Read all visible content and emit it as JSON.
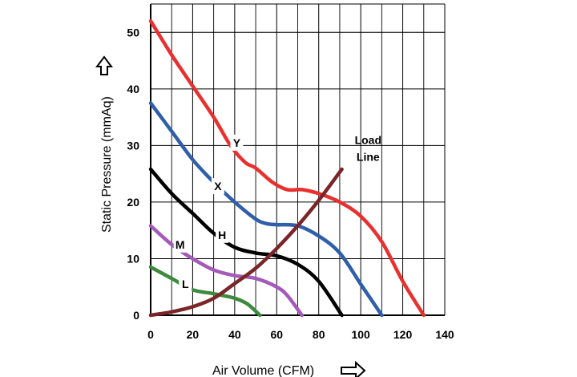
{
  "chart_data": {
    "type": "line",
    "xlabel": "Air Volume (CFM)",
    "ylabel": "Static Pressure (mmAq)",
    "xlim": [
      0,
      140
    ],
    "ylim": [
      0,
      55
    ],
    "x_ticks": [
      0,
      20,
      40,
      60,
      80,
      100,
      120,
      140
    ],
    "y_ticks": [
      0,
      10,
      20,
      30,
      40,
      50
    ],
    "grid": true,
    "series": [
      {
        "name": "Y",
        "color": "#e8312f",
        "points": [
          [
            0,
            52
          ],
          [
            10,
            46
          ],
          [
            20,
            40.5
          ],
          [
            30,
            35
          ],
          [
            38,
            30
          ],
          [
            45,
            27
          ],
          [
            50,
            26
          ],
          [
            58,
            23.5
          ],
          [
            65,
            22.2
          ],
          [
            72,
            22.2
          ],
          [
            80,
            21.5
          ],
          [
            90,
            20
          ],
          [
            100,
            17.5
          ],
          [
            110,
            13
          ],
          [
            120,
            6
          ],
          [
            130,
            0
          ]
        ]
      },
      {
        "name": "X",
        "color": "#2f5faa",
        "points": [
          [
            0,
            37.5
          ],
          [
            10,
            32.5
          ],
          [
            20,
            27.5
          ],
          [
            30,
            23.5
          ],
          [
            40,
            20
          ],
          [
            50,
            17
          ],
          [
            55,
            16.2
          ],
          [
            60,
            16
          ],
          [
            70,
            15.8
          ],
          [
            80,
            14
          ],
          [
            90,
            11
          ],
          [
            100,
            5.5
          ],
          [
            110,
            0
          ]
        ]
      },
      {
        "name": "H",
        "color": "#000000",
        "points": [
          [
            0,
            25.8
          ],
          [
            10,
            21.5
          ],
          [
            20,
            18
          ],
          [
            30,
            14.5
          ],
          [
            40,
            12
          ],
          [
            50,
            11
          ],
          [
            60,
            10.5
          ],
          [
            70,
            9
          ],
          [
            80,
            6
          ],
          [
            91,
            0
          ]
        ]
      },
      {
        "name": "M",
        "color": "#a35ab8",
        "points": [
          [
            0,
            15.8
          ],
          [
            10,
            12.5
          ],
          [
            20,
            10
          ],
          [
            30,
            8
          ],
          [
            40,
            7
          ],
          [
            50,
            6.5
          ],
          [
            60,
            5
          ],
          [
            65,
            3.5
          ],
          [
            72,
            0
          ]
        ]
      },
      {
        "name": "L",
        "color": "#3d8a3d",
        "points": [
          [
            0,
            8.5
          ],
          [
            10,
            6.5
          ],
          [
            20,
            4.5
          ],
          [
            30,
            3.8
          ],
          [
            40,
            3
          ],
          [
            46,
            2
          ],
          [
            52,
            0
          ]
        ]
      },
      {
        "name": "Load Line",
        "color": "#7a2528",
        "points": [
          [
            0,
            0
          ],
          [
            10,
            0.6
          ],
          [
            20,
            1.5
          ],
          [
            30,
            3
          ],
          [
            40,
            5.6
          ],
          [
            50,
            8.3
          ],
          [
            60,
            11.8
          ],
          [
            70,
            15.8
          ],
          [
            80,
            20.3
          ],
          [
            91,
            25.8
          ]
        ]
      }
    ],
    "annotations": [
      {
        "text": "Y",
        "x": 41,
        "y": 30.5
      },
      {
        "text": "X",
        "x": 32,
        "y": 22.8
      },
      {
        "text": "H",
        "x": 34,
        "y": 14.2
      },
      {
        "text": "M",
        "x": 14,
        "y": 12.5
      },
      {
        "text": "L",
        "x": 16.5,
        "y": 5.5
      },
      {
        "text": "Load",
        "x": 103.5,
        "y": 31
      },
      {
        "text": "Line",
        "x": 103.5,
        "y": 28
      }
    ]
  }
}
